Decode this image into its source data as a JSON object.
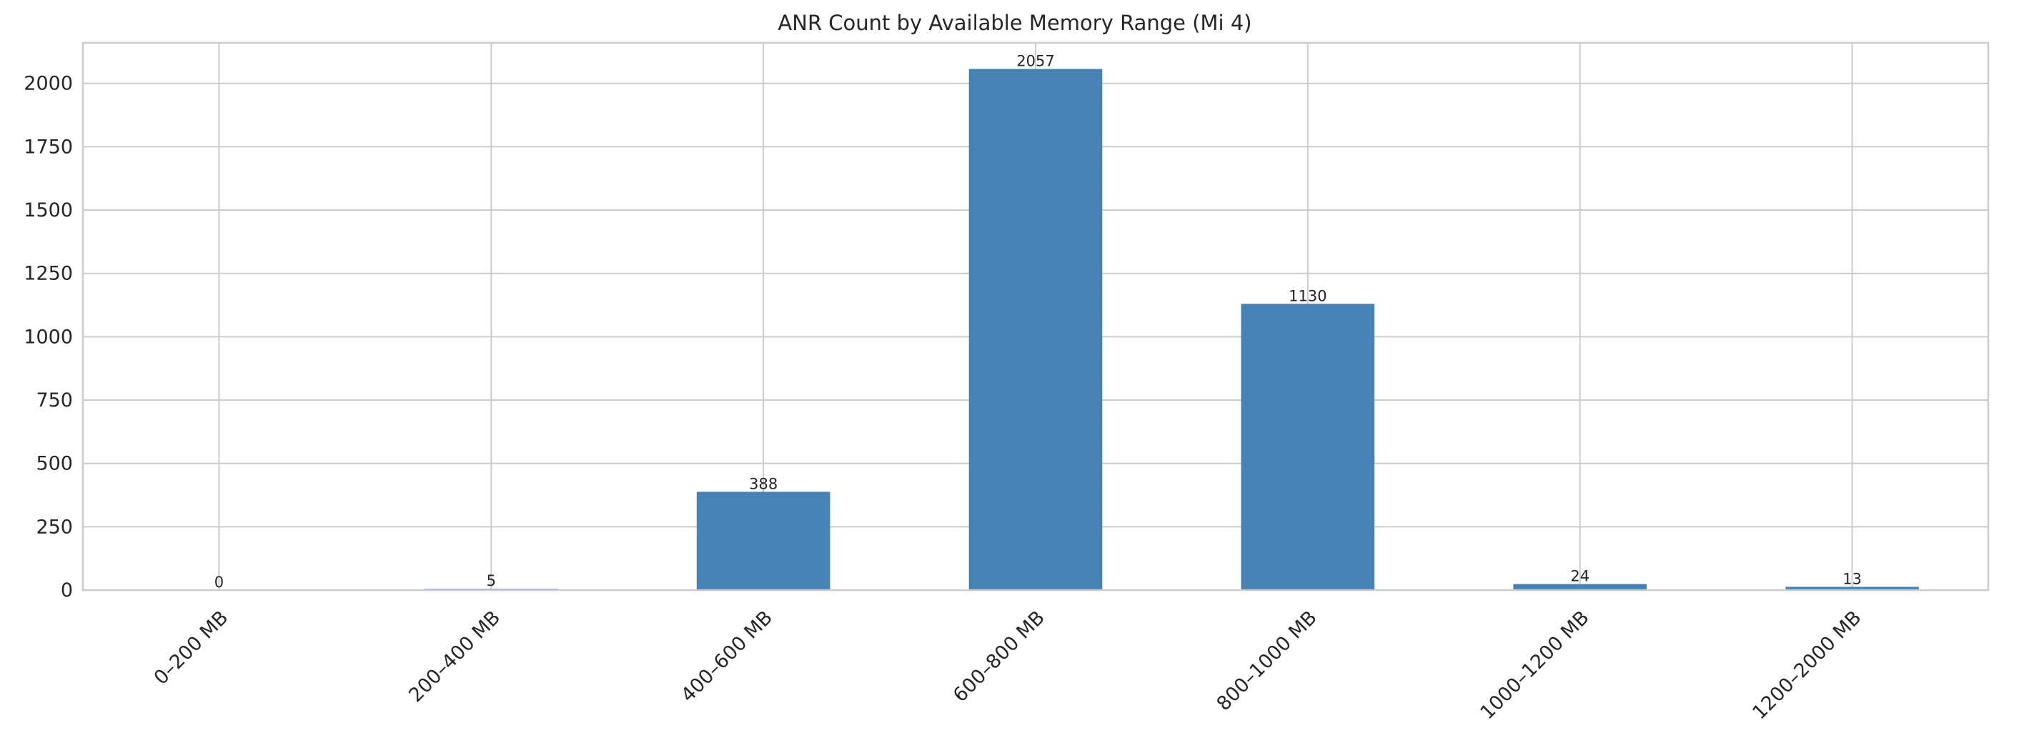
{
  "chart_data": {
    "type": "bar",
    "title": "ANR Count by Available Memory Range (Mi 4)",
    "xlabel": "",
    "ylabel": "",
    "categories": [
      "0–200 MB",
      "200–400 MB",
      "400–600 MB",
      "600–800 MB",
      "800–1000 MB",
      "1000–1200 MB",
      "1200–2000 MB"
    ],
    "values": [
      0,
      5,
      388,
      2057,
      1130,
      24,
      13
    ],
    "data_labels": [
      "0",
      "5",
      "388",
      "2057",
      "1130",
      "24",
      "13"
    ],
    "yticks": [
      0,
      250,
      500,
      750,
      1000,
      1250,
      1500,
      1750,
      2000
    ],
    "ytick_labels": [
      "0",
      "250",
      "500",
      "750",
      "1000",
      "1250",
      "1500",
      "1750",
      "2000"
    ],
    "ylim": [
      0,
      2160
    ],
    "grid": true,
    "legend": "none",
    "bar_color": "#4682b4"
  }
}
